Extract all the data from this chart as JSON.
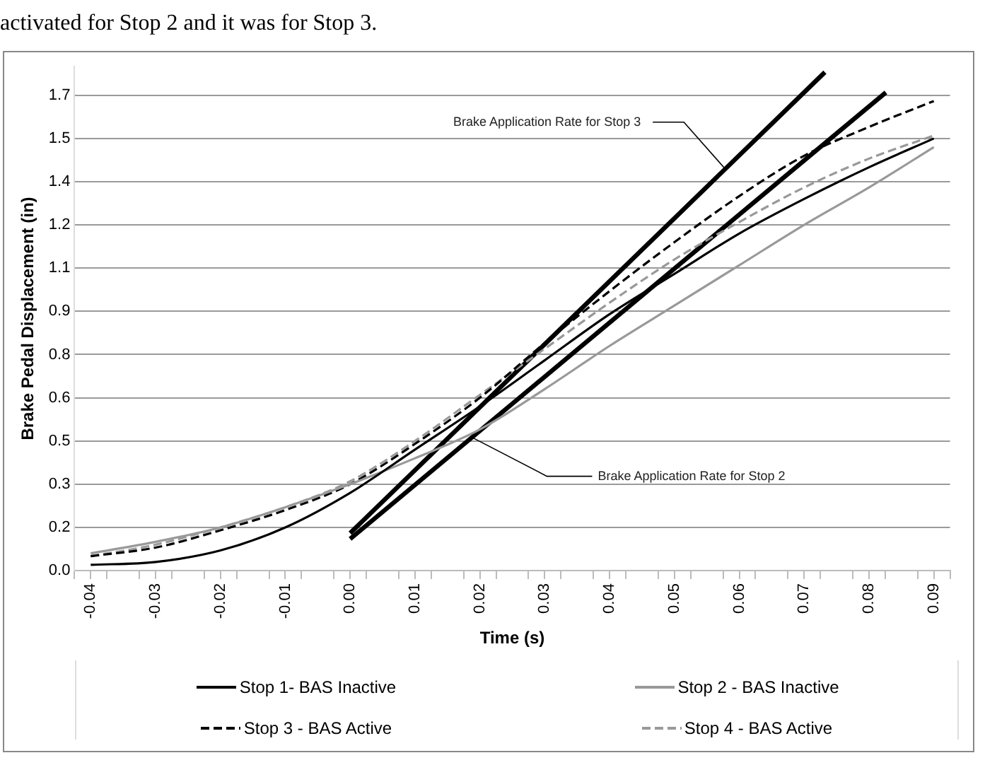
{
  "chart_data": {
    "type": "line",
    "xlabel": "Time (s)",
    "ylabel": "Brake Pedal Displacement (in)",
    "annotations": [
      "activated for Stop 2 and it was for Stop 3.",
      {
        "text": "Brake Application Rate for Stop 3",
        "x": 0.058,
        "y": 1.39
      },
      {
        "text": "Brake Application Rate for Stop 2",
        "x": 0.019,
        "y": 0.46
      }
    ],
    "xlim": [
      -0.0425,
      0.0925
    ],
    "ylim": [
      0,
      1.75
    ],
    "xticks": [
      {
        "value": -0.0425,
        "label": null
      },
      -0.04,
      {
        "value": -0.0375,
        "label": null
      },
      {
        "value": -0.0325,
        "label": null
      },
      -0.03,
      {
        "value": -0.0275,
        "label": null
      },
      {
        "value": -0.0225,
        "label": null
      },
      -0.02,
      {
        "value": -0.0175,
        "label": null
      },
      {
        "value": -0.0125,
        "label": null
      },
      -0.01,
      {
        "value": -0.0075,
        "label": null
      },
      {
        "value": -0.0025,
        "label": null
      },
      {
        "value": 0,
        "label": "0.00"
      },
      {
        "value": 0.0025,
        "label": null
      },
      {
        "value": 0.0075,
        "label": null
      },
      0.01,
      {
        "value": 0.0125,
        "label": null
      },
      {
        "value": 0.0175,
        "label": null
      },
      0.02,
      {
        "value": 0.0225,
        "label": null
      },
      {
        "value": 0.0275,
        "label": null
      },
      0.03,
      {
        "value": 0.0325,
        "label": null
      },
      {
        "value": 0.0375,
        "label": null
      },
      0.04,
      {
        "value": 0.0425,
        "label": null
      },
      {
        "value": 0.0475,
        "label": null
      },
      0.05,
      {
        "value": 0.0525,
        "label": null
      },
      {
        "value": 0.0575,
        "label": null
      },
      0.06,
      {
        "value": 0.0625,
        "label": null
      },
      {
        "value": 0.0675,
        "label": null
      },
      0.07,
      {
        "value": 0.0725,
        "label": null
      },
      {
        "value": 0.0775,
        "label": null
      },
      0.08,
      {
        "value": 0.0825,
        "label": null
      },
      {
        "value": 0.0875,
        "label": null
      },
      0.09,
      {
        "value": 0.0925,
        "label": null
      }
    ],
    "yticks": [
      {
        "value": 0,
        "label": "0.0"
      },
      {
        "value": 0.15,
        "label": "0.2"
      },
      {
        "value": 0.3,
        "label": "0.3"
      },
      {
        "value": 0.45,
        "label": "0.5"
      },
      {
        "value": 0.6,
        "label": "0.6"
      },
      {
        "value": 0.75,
        "label": "0.8"
      },
      {
        "value": 0.9,
        "label": "0.9"
      },
      {
        "value": 1.05,
        "label": "1.1"
      },
      {
        "value": 1.2,
        "label": "1.2"
      },
      {
        "value": 1.35,
        "label": "1.4"
      },
      {
        "value": 1.5,
        "label": "1.5"
      },
      {
        "value": 1.65,
        "label": "1.7"
      }
    ],
    "grid": "y",
    "legend": "bottom",
    "marker": "none",
    "x": [
      -0.04,
      -0.03,
      -0.02,
      -0.01,
      0,
      0.01,
      0.02,
      0.03,
      0.04,
      0.05,
      0.06,
      0.07,
      0.08,
      0.09
    ],
    "series": [
      {
        "name": "Stop 1- BAS Inactive",
        "color": "#000000",
        "line_style": "solid",
        "values": [
          0.02,
          0.03,
          0.07,
          0.15,
          0.27,
          0.42,
          0.57,
          0.73,
          0.89,
          1.03,
          1.17,
          1.29,
          1.4,
          1.5
        ]
      },
      {
        "name": "Stop 2 - BAS Inactive",
        "color": "#999999",
        "line_style": "solid",
        "values": [
          0.06,
          0.1,
          0.15,
          0.22,
          0.3,
          0.39,
          0.49,
          0.63,
          0.78,
          0.92,
          1.06,
          1.2,
          1.33,
          1.47
        ]
      },
      {
        "name": "Stop 3 - BAS Active",
        "color": "#000000",
        "line_style": "dashed",
        "values": [
          0.05,
          0.08,
          0.14,
          0.21,
          0.3,
          0.44,
          0.6,
          0.79,
          0.97,
          1.14,
          1.3,
          1.44,
          1.54,
          1.63
        ]
      },
      {
        "name": "Stop 4 - BAS Active",
        "color": "#999999",
        "line_style": "dashed",
        "values": [
          0.05,
          0.09,
          0.15,
          0.22,
          0.31,
          0.45,
          0.61,
          0.77,
          0.93,
          1.08,
          1.21,
          1.33,
          1.43,
          1.51
        ]
      },
      {
        "color": "#000000",
        "line_style": "solid",
        "x": [
          0,
          0.0732
        ],
        "values": [
          0.13,
          1.73
        ]
      },
      {
        "color": "#000000",
        "line_style": "solid",
        "x": [
          0,
          0.0826
        ],
        "values": [
          0.11,
          1.66
        ]
      }
    ]
  }
}
